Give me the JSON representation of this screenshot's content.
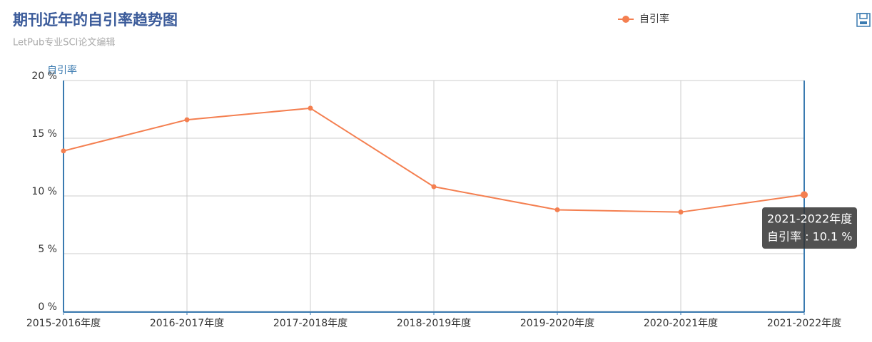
{
  "chart_data": {
    "type": "line",
    "title": "期刊近年的自引率趋势图",
    "subtitle": "LetPub专业SCI论文编辑",
    "y_label": "自引率",
    "categories": [
      "2015-2016年度",
      "2016-2017年度",
      "2017-2018年度",
      "2018-2019年度",
      "2019-2020年度",
      "2020-2021年度",
      "2021-2022年度"
    ],
    "series": [
      {
        "name": "自引率",
        "color": "#f47f50",
        "values": [
          13.9,
          16.6,
          17.6,
          10.8,
          8.8,
          8.6,
          10.1
        ]
      }
    ],
    "ylim": [
      0,
      20
    ],
    "yticks": [
      {
        "value": 0,
        "label": "0 %"
      },
      {
        "value": 5,
        "label": "5 %"
      },
      {
        "value": 10,
        "label": "10 %"
      },
      {
        "value": 15,
        "label": "15 %"
      },
      {
        "value": 20,
        "label": "20 %"
      }
    ],
    "grid": true,
    "legend": "top",
    "tooltip": {
      "label": "自引率 : 10.1 %"
    }
  }
}
